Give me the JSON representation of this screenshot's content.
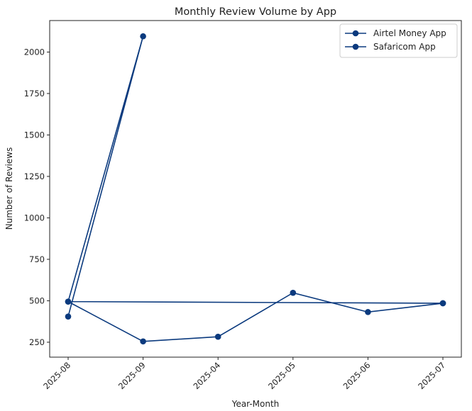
{
  "chart_data": {
    "type": "line",
    "title": "Monthly Review Volume by App",
    "xlabel": "Year-Month",
    "ylabel": "Number of Reviews",
    "categories": [
      "2025-08",
      "2025-09",
      "2025-04",
      "2025-05",
      "2025-06",
      "2025-07"
    ],
    "yticks": [
      250,
      500,
      750,
      1000,
      1250,
      1500,
      1750,
      2000
    ],
    "ylim": [
      160,
      2190
    ],
    "grid": false,
    "legend_position": "top-right",
    "series": [
      {
        "name": "Airtel Money App",
        "color": "#0b3a7e",
        "x": [
          "2025-08",
          "2025-09",
          "2025-08",
          "2025-07"
        ],
        "values": [
          405,
          2095,
          495,
          485
        ]
      },
      {
        "name": "Safaricom App",
        "color": "#0b3a7e",
        "x": [
          "2025-08",
          "2025-09",
          "2025-04",
          "2025-05",
          "2025-06",
          "2025-07"
        ],
        "values": [
          495,
          255,
          283,
          548,
          432,
          485
        ]
      }
    ]
  }
}
